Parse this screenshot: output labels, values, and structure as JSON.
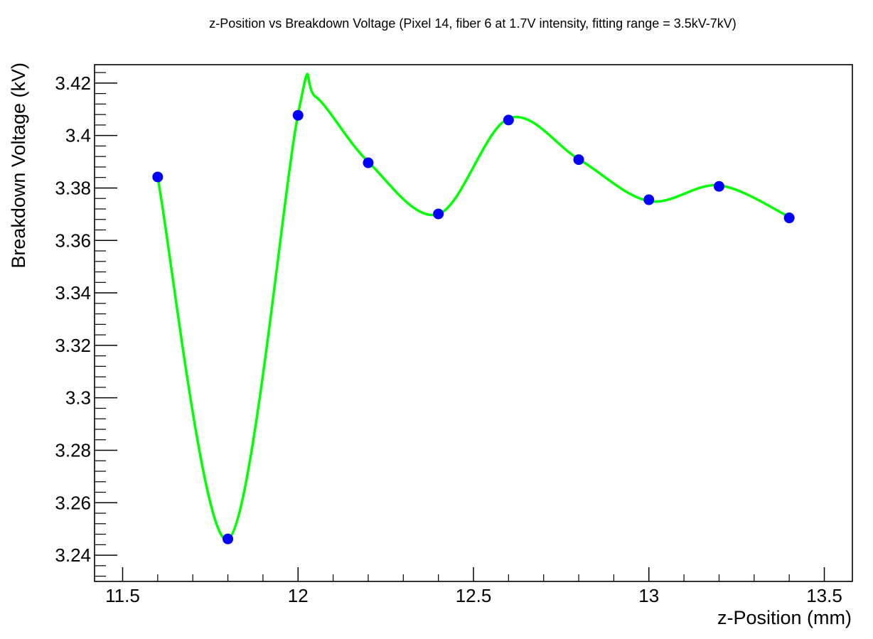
{
  "chart_data": {
    "type": "scatter",
    "title": "z-Position vs Breakdown Voltage (Pixel 14, fiber 6 at 1.7V intensity, fitting range = 3.5kV-7kV)",
    "xlabel": "z-Position (mm)",
    "ylabel": "Breakdown Voltage (kV)",
    "xlim": [
      11.42,
      13.58
    ],
    "ylim": [
      3.23,
      3.427
    ],
    "x_ticks": [
      "11.5",
      "12",
      "12.5",
      "13",
      "13.5"
    ],
    "y_ticks": [
      "3.24",
      "3.26",
      "3.28",
      "3.3",
      "3.32",
      "3.34",
      "3.36",
      "3.38",
      "3.4",
      "3.42"
    ],
    "grid": false,
    "series": [
      {
        "kind": "points",
        "color": "#0000ff",
        "x": [
          11.6,
          11.8,
          12.0,
          12.2,
          12.4,
          12.6,
          12.8,
          13.0,
          13.2,
          13.4
        ],
        "y": [
          3.3842,
          3.2462,
          3.4077,
          3.3896,
          3.3701,
          3.4059,
          3.3908,
          3.3755,
          3.3806,
          3.3686
        ]
      },
      {
        "kind": "fit-curve",
        "color": "#00ff00",
        "x": [
          11.6,
          11.8,
          12.0,
          12.05,
          12.2,
          12.4,
          12.6,
          12.8,
          13.0,
          13.2,
          13.4
        ],
        "y": [
          3.384,
          3.246,
          3.408,
          3.4148,
          3.39,
          3.37,
          3.4065,
          3.391,
          3.375,
          3.381,
          3.369
        ]
      }
    ]
  }
}
